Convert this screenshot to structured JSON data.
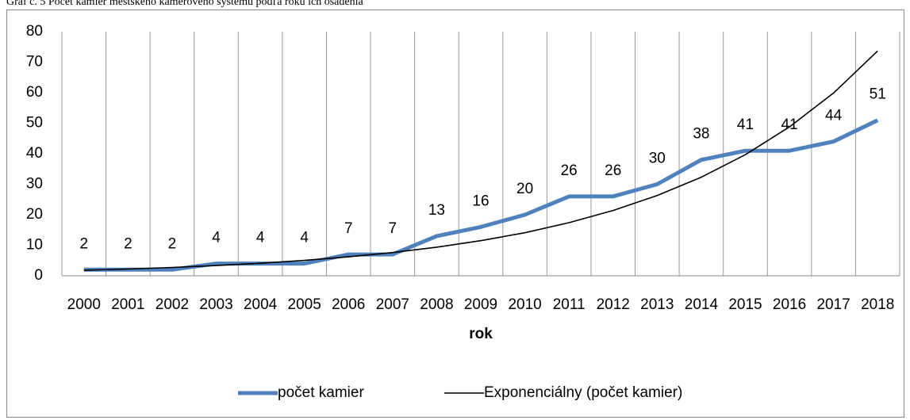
{
  "caption": "Graf č. 5 Počet kamier mestského kamerového systému podľa roku ich osadenia",
  "chart_data": {
    "type": "line",
    "xlabel": "rok",
    "categories": [
      "2000",
      "2001",
      "2002",
      "2003",
      "2004",
      "2005",
      "2006",
      "2007",
      "2008",
      "2009",
      "2010",
      "2011",
      "2012",
      "2013",
      "2014",
      "2015",
      "2016",
      "2017",
      "2018"
    ],
    "series": [
      {
        "name": "počet kamier",
        "color": "#4f81bd",
        "values": [
          2,
          2,
          2,
          4,
          4,
          4,
          7,
          7,
          13,
          16,
          20,
          26,
          26,
          30,
          38,
          41,
          41,
          44,
          51
        ],
        "data_labels": true
      },
      {
        "name": "Exponenciálny (počet kamier)",
        "color": "#000000",
        "values": [
          1.8,
          2.21,
          2.72,
          3.34,
          4.11,
          5.05,
          6.2,
          7.62,
          9.37,
          11.5,
          14.1,
          17.4,
          21.4,
          26.3,
          32.3,
          39.7,
          48.8,
          59.9,
          73.7
        ],
        "data_labels": false
      }
    ],
    "ylim": [
      0,
      80
    ],
    "yticks": [
      0,
      10,
      20,
      30,
      40,
      50,
      60,
      70,
      80
    ],
    "xgrid": true,
    "legend": "bottom"
  }
}
